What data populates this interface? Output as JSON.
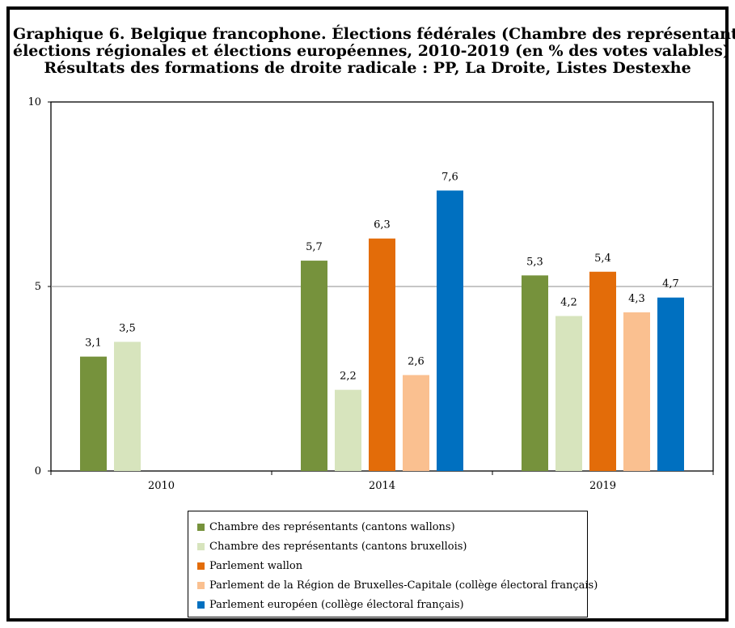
{
  "title_lines": [
    "Graphique 6. Belgique francophone. Élections fédérales (Chambre des représentants),",
    "élections régionales et élections européennes, 2010-2019 (en % des votes valables)",
    "Résultats des formations de droite radicale : PP, La Droite, Listes Destexhe"
  ],
  "chart_data": {
    "type": "bar",
    "categories": [
      "2010",
      "2014",
      "2019"
    ],
    "series": [
      {
        "name": "Chambre des représentants (cantons wallons)",
        "color": "#76923C",
        "values": [
          3.1,
          5.7,
          5.3
        ],
        "labels": [
          "3,1",
          "5,7",
          "5,3"
        ]
      },
      {
        "name": "Chambre des représentants (cantons bruxellois)",
        "color": "#D7E4BD",
        "values": [
          3.5,
          2.2,
          4.2
        ],
        "labels": [
          "3,5",
          "2,2",
          "4,2"
        ]
      },
      {
        "name": "Parlement wallon",
        "color": "#E36C09",
        "values": [
          null,
          6.3,
          5.4
        ],
        "labels": [
          "",
          "6,3",
          "5,4"
        ]
      },
      {
        "name": "Parlement de la Région de Bruxelles-Capitale (collège électoral français)",
        "color": "#FAC090",
        "values": [
          null,
          2.6,
          4.3
        ],
        "labels": [
          "",
          "2,6",
          "4,3"
        ]
      },
      {
        "name": "Parlement européen (collège électoral français)",
        "color": "#0070C0",
        "values": [
          null,
          7.6,
          4.7
        ],
        "labels": [
          "",
          "7,6",
          "4,7"
        ]
      }
    ],
    "ylim": [
      0,
      10
    ],
    "yticks": [
      "0",
      "5",
      "10"
    ],
    "gridlines": [
      5
    ],
    "legend": "bottom"
  }
}
